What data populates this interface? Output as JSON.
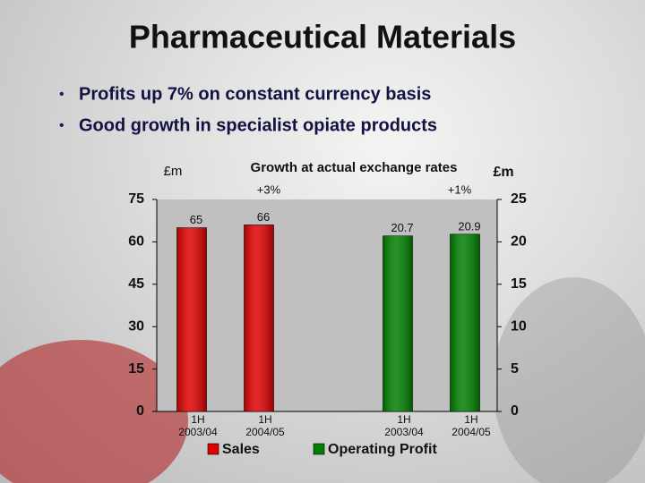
{
  "title": "Pharmaceutical Materials",
  "bullets": [
    "Profits up 7% on constant currency basis",
    "Good growth in specialist opiate products"
  ],
  "chart_data": {
    "type": "bar",
    "annotations": [
      "Growth at actual exchange rates",
      "+3%",
      "+1%"
    ],
    "y_label": "£m",
    "y2_label": "£m",
    "categories": [
      "1H 2003/04",
      "1H 2004/05",
      "1H 2003/04",
      "1H 2004/05"
    ],
    "series": [
      {
        "name": "Sales",
        "color": "#e00000",
        "values": [
          65,
          66,
          null,
          null
        ]
      },
      {
        "name": "Operating Profit",
        "color": "#008000",
        "axis": "y2",
        "values": [
          null,
          null,
          20.7,
          20.9
        ]
      }
    ],
    "ylim": [
      0,
      75
    ],
    "yticks": [
      0,
      15,
      30,
      45,
      60,
      75
    ],
    "y2lim": [
      0,
      25
    ],
    "y2ticks": [
      0,
      5,
      10,
      15,
      20,
      25
    ]
  }
}
